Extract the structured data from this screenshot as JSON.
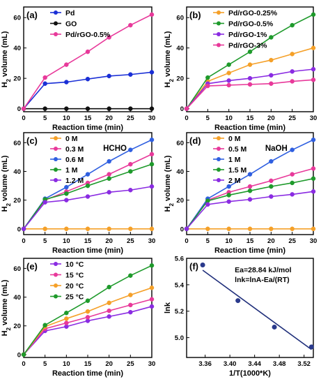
{
  "chart_data": [
    {
      "panel": "(a)",
      "type": "line",
      "xlabel": "Reaction time (min)",
      "ylabel": [
        "H",
        "2",
        " volume (mL)"
      ],
      "x": [
        0,
        5,
        10,
        15,
        20,
        25,
        30
      ],
      "xticks": [
        "0",
        "5",
        "10",
        "15",
        "20",
        "25",
        "30"
      ],
      "xlim": [
        0,
        30
      ],
      "ylim": [
        -2,
        67
      ],
      "yticks": [
        0,
        20,
        40,
        60
      ],
      "ytick_labels": [
        "0",
        "20",
        "40",
        "60"
      ],
      "legend_position": "top-left",
      "series": [
        {
          "name": "Pd",
          "color": "#1a2fd6",
          "values": [
            0,
            16.5,
            17.5,
            19.5,
            21.5,
            22.5,
            24
          ]
        },
        {
          "name": "GO",
          "color": "#111111",
          "values": [
            0,
            0,
            0,
            0,
            0,
            0,
            0
          ]
        },
        {
          "name": "Pd/rGO-0.5%",
          "color": "#e8399a",
          "values": [
            0,
            20.5,
            29,
            37.5,
            47,
            55,
            62
          ]
        }
      ]
    },
    {
      "panel": "(b)",
      "type": "line",
      "xlabel": "Reaction time (min)",
      "ylabel": [
        "H",
        "2",
        " volume (mL)"
      ],
      "x": [
        0,
        5,
        10,
        15,
        20,
        25,
        30
      ],
      "xticks": [
        "0",
        "5",
        "10",
        "15",
        "20",
        "25",
        "30"
      ],
      "xlim": [
        0,
        30
      ],
      "ylim": [
        -2,
        67
      ],
      "yticks": [
        0,
        20,
        40,
        60
      ],
      "ytick_labels": [
        "0",
        "20",
        "40",
        "60"
      ],
      "legend_position": "top-left",
      "series": [
        {
          "name": "Pd/rGO-0.25%",
          "color": "#f5a028",
          "values": [
            0,
            18,
            23.5,
            29,
            32,
            36,
            40
          ]
        },
        {
          "name": "Pd/rGO-0.5%",
          "color": "#1e9a2b",
          "values": [
            0,
            20.5,
            29,
            37.5,
            47,
            55,
            62
          ]
        },
        {
          "name": "Pd/rGO-1%",
          "color": "#8a2be2",
          "values": [
            0,
            16.5,
            18.5,
            20,
            22,
            24.5,
            26
          ]
        },
        {
          "name": "Pd/rGO-3%",
          "color": "#e8399a",
          "values": [
            0,
            15,
            15.5,
            16,
            16.5,
            18,
            19
          ]
        }
      ]
    },
    {
      "panel": "(c)",
      "type": "line",
      "annotation": "HCHO",
      "xlabel": "Reaction time (min)",
      "ylabel": [
        "H",
        "2",
        " volume (mL)"
      ],
      "x": [
        0,
        5,
        10,
        15,
        20,
        25,
        30
      ],
      "xticks": [
        "0",
        "5",
        "10",
        "15",
        "20",
        "25",
        "30"
      ],
      "xlim": [
        0,
        30
      ],
      "ylim": [
        -4,
        67
      ],
      "yticks": [
        0,
        20,
        40,
        60
      ],
      "ytick_labels": [
        "0",
        "20",
        "40",
        "60"
      ],
      "legend_position": "top-left",
      "series": [
        {
          "name": "0 M",
          "color": "#f5a028",
          "values": [
            0,
            0,
            0,
            0,
            0,
            0,
            0
          ]
        },
        {
          "name": "0.3 M",
          "color": "#e8399a",
          "values": [
            0,
            20,
            26,
            32,
            38,
            45,
            52
          ]
        },
        {
          "name": "0.6 M",
          "color": "#2f5fe0",
          "values": [
            0,
            21,
            29,
            38,
            47,
            55,
            62
          ]
        },
        {
          "name": "1 M",
          "color": "#1e9a2b",
          "values": [
            0,
            20.5,
            24.5,
            30,
            35,
            40,
            45
          ]
        },
        {
          "name": "1.2 M",
          "color": "#8a2be2",
          "values": [
            0,
            18.5,
            20,
            22.5,
            25.5,
            27,
            29.5
          ]
        }
      ]
    },
    {
      "panel": "(d)",
      "type": "line",
      "annotation": "NaOH",
      "xlabel": "Reaction time (min)",
      "ylabel": [
        "H",
        "2",
        " volume (mL)"
      ],
      "x": [
        0,
        5,
        10,
        15,
        20,
        25,
        30
      ],
      "xticks": [
        "0",
        "5",
        "10",
        "15",
        "20",
        "25",
        "30"
      ],
      "xlim": [
        0,
        30
      ],
      "ylim": [
        -4,
        67
      ],
      "yticks": [
        0,
        20,
        40,
        60
      ],
      "ytick_labels": [
        "0",
        "20",
        "40",
        "60"
      ],
      "legend_position": "top-left",
      "series": [
        {
          "name": "0 M",
          "color": "#f5a028",
          "values": [
            0,
            0,
            0,
            0,
            0,
            0,
            0
          ]
        },
        {
          "name": "0.5 M",
          "color": "#e8399a",
          "values": [
            0,
            20,
            25.5,
            29.5,
            33.5,
            38,
            42
          ]
        },
        {
          "name": "1 M",
          "color": "#2f5fe0",
          "values": [
            0,
            21,
            29.5,
            38,
            47,
            55,
            62
          ]
        },
        {
          "name": "1.5 M",
          "color": "#1e9a2b",
          "values": [
            0,
            19.5,
            23.5,
            26.5,
            29.5,
            32,
            35
          ]
        },
        {
          "name": "2 M",
          "color": "#8a2be2",
          "values": [
            0,
            17,
            19,
            20.5,
            22.5,
            24,
            26
          ]
        }
      ]
    },
    {
      "panel": "(e)",
      "type": "line",
      "xlabel": "Reaction time (min)",
      "ylabel": [
        "H",
        "2",
        " volume (mL)"
      ],
      "x": [
        0,
        5,
        10,
        15,
        20,
        25,
        30
      ],
      "xticks": [
        "0",
        "5",
        "10",
        "15",
        "20",
        "25",
        "30"
      ],
      "xlim": [
        0,
        30
      ],
      "ylim": [
        -2,
        67
      ],
      "yticks": [
        0,
        20,
        40,
        60
      ],
      "ytick_labels": [
        "0",
        "20",
        "40",
        "60"
      ],
      "legend_position": "top-left",
      "series": [
        {
          "name": "10 °C",
          "color": "#8a2be2",
          "values": [
            0,
            16.5,
            19.5,
            23.5,
            26.5,
            29.5,
            33.5
          ]
        },
        {
          "name": "15 °C",
          "color": "#e8399a",
          "values": [
            0,
            18,
            22,
            26,
            30.5,
            34.5,
            38.5
          ]
        },
        {
          "name": "20 °C",
          "color": "#f5a028",
          "values": [
            0,
            19.5,
            25,
            30,
            36,
            41.5,
            46.5
          ]
        },
        {
          "name": "25 °C",
          "color": "#1e9a2b",
          "values": [
            0,
            20.5,
            29,
            37.5,
            47,
            55,
            62
          ]
        }
      ]
    },
    {
      "panel": "(f)",
      "type": "scatter",
      "xlabel": "1/T(1000*K)",
      "ylabel": [
        "lnk"
      ],
      "xlim": [
        3.33,
        3.535
      ],
      "ylim": [
        4.85,
        5.6
      ],
      "xticks": [
        3.36,
        3.4,
        3.44,
        3.48,
        3.52
      ],
      "xtick_labels": [
        "3.36",
        "3.40",
        "3.44",
        "3.48",
        "3.52"
      ],
      "yticks": [
        5.0,
        5.2,
        5.4,
        5.6
      ],
      "ytick_labels": [
        "5.0",
        "5.2",
        "5.4",
        "5.6"
      ],
      "annotations": [
        "Ea=28.84 kJ/mol",
        "lnk=lnA-Ea/(RT)"
      ],
      "points": {
        "x": [
          3.356,
          3.413,
          3.472,
          3.532
        ],
        "y": [
          5.55,
          5.28,
          5.08,
          4.93
        ]
      },
      "fit_line": {
        "x": [
          3.356,
          3.532
        ],
        "y": [
          5.51,
          4.91
        ]
      },
      "point_color": "#2a3a8c",
      "line_color": "#1f2e7a"
    }
  ]
}
